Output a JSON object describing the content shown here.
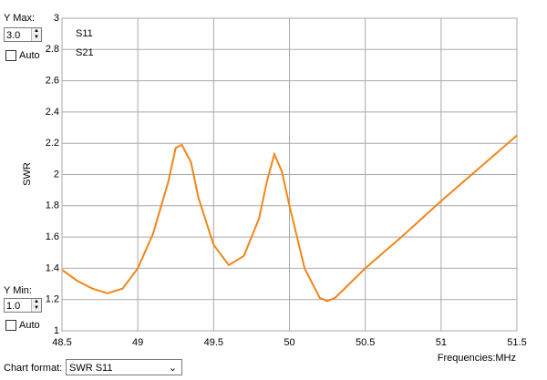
{
  "controls": {
    "ymax_label": "Y Max:",
    "ymax_value": "3.0",
    "ymax_auto": "Auto",
    "ymin_label": "Y Min:",
    "ymin_value": "1.0",
    "ymin_auto": "Auto",
    "format_label": "Chart format:",
    "format_value": "SWR S11"
  },
  "chart_data": {
    "type": "line",
    "y_label": "SWR",
    "x_label": "Frequencies:MHz",
    "x": [
      48.5,
      48.6,
      48.7,
      48.8,
      48.9,
      49.0,
      49.1,
      49.2,
      49.25,
      49.29,
      49.35,
      49.4,
      49.5,
      49.6,
      49.7,
      49.8,
      49.85,
      49.9,
      49.95,
      50.0,
      50.1,
      50.2,
      50.25,
      50.3,
      50.5,
      50.75,
      51.0,
      51.25,
      51.5
    ],
    "series": [
      {
        "name": "S11",
        "color": "#f0861a",
        "values": [
          1.39,
          1.32,
          1.27,
          1.24,
          1.27,
          1.4,
          1.62,
          1.95,
          2.17,
          2.19,
          2.08,
          1.85,
          1.55,
          1.42,
          1.48,
          1.72,
          1.95,
          2.13,
          2.02,
          1.8,
          1.4,
          1.21,
          1.19,
          1.21,
          1.4,
          1.61,
          1.83,
          2.04,
          2.25
        ]
      },
      {
        "name": "S21",
        "color": "#2a2ad0",
        "values": [
          null,
          null,
          null,
          null,
          null,
          null,
          null,
          null,
          null,
          null,
          null,
          null,
          null,
          null,
          null,
          null,
          null,
          null,
          null,
          null,
          null,
          null,
          null,
          null,
          null,
          null,
          null,
          null,
          null
        ]
      }
    ],
    "xlim": [
      48.5,
      51.5
    ],
    "xticks": [
      48.5,
      49,
      49.5,
      50,
      50.5,
      51,
      51.5
    ],
    "ylim": [
      1,
      3
    ],
    "yticks": [
      1,
      1.2,
      1.4,
      1.6,
      1.8,
      2,
      2.2,
      2.4,
      2.6,
      2.8,
      3
    ],
    "grid": true
  }
}
